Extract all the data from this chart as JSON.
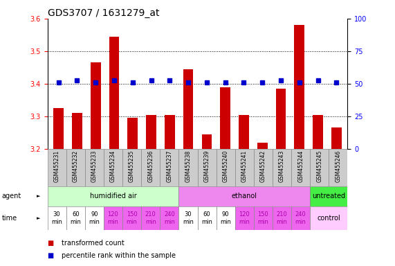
{
  "title": "GDS3707 / 1631279_at",
  "samples": [
    "GSM455231",
    "GSM455232",
    "GSM455233",
    "GSM455234",
    "GSM455235",
    "GSM455236",
    "GSM455237",
    "GSM455238",
    "GSM455239",
    "GSM455240",
    "GSM455241",
    "GSM455242",
    "GSM455243",
    "GSM455244",
    "GSM455245",
    "GSM455246"
  ],
  "bar_values": [
    3.325,
    3.31,
    3.465,
    3.545,
    3.295,
    3.305,
    3.305,
    3.445,
    3.245,
    3.39,
    3.305,
    3.22,
    3.385,
    3.58,
    3.305,
    3.265
  ],
  "percentile_yvals": [
    3.405,
    3.41,
    3.405,
    3.41,
    3.405,
    3.41,
    3.41,
    3.405,
    3.405,
    3.405,
    3.405,
    3.405,
    3.41,
    3.405,
    3.41,
    3.405
  ],
  "ylim": [
    3.2,
    3.6
  ],
  "yticks_left": [
    3.2,
    3.3,
    3.4,
    3.5,
    3.6
  ],
  "yticks_right": [
    0,
    25,
    50,
    75,
    100
  ],
  "right_ylim": [
    0,
    100
  ],
  "dotted_lines": [
    3.3,
    3.4,
    3.5
  ],
  "bar_color": "#cc0000",
  "percentile_color": "#0000cc",
  "agent_groups": [
    {
      "label": "humidified air",
      "start": 0,
      "end": 7,
      "color": "#ccffcc"
    },
    {
      "label": "ethanol",
      "start": 7,
      "end": 14,
      "color": "#ee88ee"
    },
    {
      "label": "untreated",
      "start": 14,
      "end": 16,
      "color": "#44ee44"
    }
  ],
  "time_items": [
    {
      "label": "30\nmin",
      "bg": "#ffffff",
      "fc": "#000000"
    },
    {
      "label": "60\nmin",
      "bg": "#ffffff",
      "fc": "#000000"
    },
    {
      "label": "90\nmin",
      "bg": "#ffffff",
      "fc": "#000000"
    },
    {
      "label": "120\nmin",
      "bg": "#ee66ee",
      "fc": "#aa00aa"
    },
    {
      "label": "150\nmin",
      "bg": "#ee66ee",
      "fc": "#aa00aa"
    },
    {
      "label": "210\nmin",
      "bg": "#ee66ee",
      "fc": "#aa00aa"
    },
    {
      "label": "240\nmin",
      "bg": "#ee66ee",
      "fc": "#aa00aa"
    },
    {
      "label": "30\nmin",
      "bg": "#ffffff",
      "fc": "#000000"
    },
    {
      "label": "60\nmin",
      "bg": "#ffffff",
      "fc": "#000000"
    },
    {
      "label": "90\nmin",
      "bg": "#ffffff",
      "fc": "#000000"
    },
    {
      "label": "120\nmin",
      "bg": "#ee66ee",
      "fc": "#aa00aa"
    },
    {
      "label": "150\nmin",
      "bg": "#ee66ee",
      "fc": "#aa00aa"
    },
    {
      "label": "210\nmin",
      "bg": "#ee66ee",
      "fc": "#aa00aa"
    },
    {
      "label": "240\nmin",
      "bg": "#ee66ee",
      "fc": "#aa00aa"
    }
  ],
  "control_bg": "#ffccff",
  "control_fc": "#000000",
  "legend_items": [
    {
      "color": "#cc0000",
      "label": "transformed count"
    },
    {
      "color": "#0000cc",
      "label": "percentile rank within the sample"
    }
  ],
  "sample_cell_color": "#cccccc",
  "sample_cell_edge": "#888888",
  "title_fontsize": 10,
  "bar_tick_fontsize": 7,
  "sample_fontsize": 5.5,
  "time_fontsize": 6,
  "annot_fontsize": 7,
  "legend_fontsize": 7
}
